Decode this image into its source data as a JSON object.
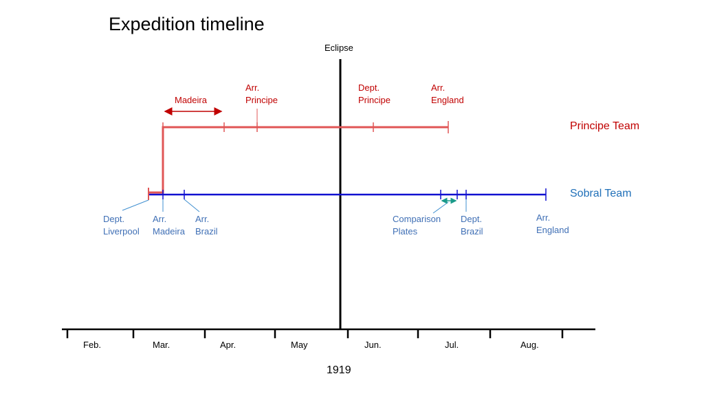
{
  "title": "Expedition timeline",
  "eclipse_label": "Eclipse",
  "year": "1919",
  "months": [
    "Feb.",
    "Mar.",
    "Apr.",
    "May",
    "Jun.",
    "Jul.",
    "Aug."
  ],
  "principe": {
    "team_label": "Principe Team",
    "madeira": "Madeira",
    "arr_principe": "Arr.\nPrincipe",
    "dept_principe": "Dept.\nPrincipe",
    "arr_england": "Arr.\nEngland"
  },
  "sobral": {
    "team_label": "Sobral Team",
    "dept_liverpool": "Dept.\nLiverpool",
    "arr_madeira": "Arr.\nMadeira",
    "arr_brazil": "Arr.\nBrazil",
    "comparison_plates": "Comparison\nPlates",
    "dept_brazil": "Dept.\nBrazil",
    "arr_england": "Arr.\nEngland"
  },
  "colors": {
    "principe": "#e05555",
    "principe_text": "#c00000",
    "sobral": "#1010d0",
    "sobral_text": "#3f6fb5",
    "comparison_arrow": "#1a9a8a",
    "axis": "#000000"
  }
}
